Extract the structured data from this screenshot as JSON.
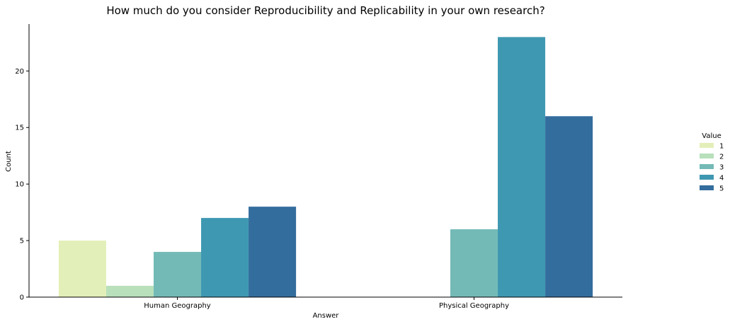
{
  "chart_data": {
    "type": "bar",
    "title": "How much do you consider Reproducibility and Replicability in your own research?",
    "xlabel": "Answer",
    "ylabel": "Count",
    "categories": [
      "Human Geography",
      "Physical Geography"
    ],
    "ylim": [
      0,
      24.15
    ],
    "yticks": [
      0,
      5,
      10,
      15,
      20
    ],
    "grid": false,
    "legend": {
      "title": "Value",
      "placement": "right"
    },
    "series": [
      {
        "name": "1",
        "color": "#e3efb8",
        "values": [
          5,
          0
        ]
      },
      {
        "name": "2",
        "color": "#b8e0bb",
        "values": [
          1,
          0
        ]
      },
      {
        "name": "3",
        "color": "#73bab6",
        "values": [
          4,
          6
        ]
      },
      {
        "name": "4",
        "color": "#3f98b2",
        "values": [
          7,
          23
        ]
      },
      {
        "name": "5",
        "color": "#336d9d",
        "values": [
          8,
          16
        ]
      }
    ]
  }
}
